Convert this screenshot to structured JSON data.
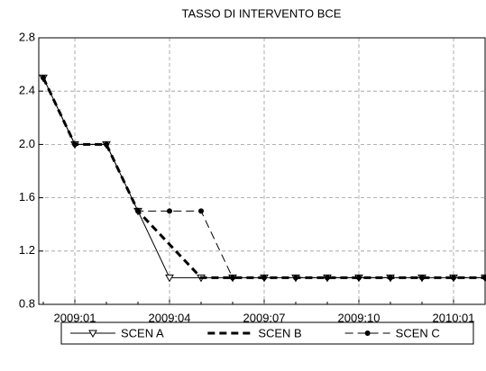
{
  "chart_data": {
    "type": "line",
    "title": "TASSO DI INTERVENTO BCE",
    "categories": [
      null,
      "2009:01",
      null,
      null,
      "2009:04",
      null,
      null,
      "2009:07",
      null,
      null,
      "2009:10",
      null,
      null,
      "2010:01",
      null
    ],
    "series": [
      {
        "name": "SCEN A",
        "color": "#000000",
        "values": [
          2.5,
          2,
          2,
          1.5,
          1,
          1,
          1,
          1,
          1,
          1,
          1,
          1,
          1,
          1,
          1
        ]
      },
      {
        "name": "SCEN B",
        "color": "#000000",
        "values": [
          2.5,
          2,
          2,
          1.5,
          1.25,
          1,
          1,
          1,
          1,
          1,
          1,
          1,
          1,
          1,
          1
        ]
      },
      {
        "name": "SCEN C",
        "color": "#000000",
        "values": [
          2.5,
          2,
          2,
          1.5,
          1.5,
          1.5,
          1,
          1,
          1,
          1,
          1,
          1,
          1,
          1,
          1
        ]
      }
    ],
    "ylim": [
      0.8,
      2.8
    ],
    "yticks": [
      0.8,
      1.2,
      1.6,
      {
        "value": 2,
        "label": "2.0"
      },
      2.4,
      2.8
    ],
    "grid": true,
    "legend": "bottom"
  }
}
